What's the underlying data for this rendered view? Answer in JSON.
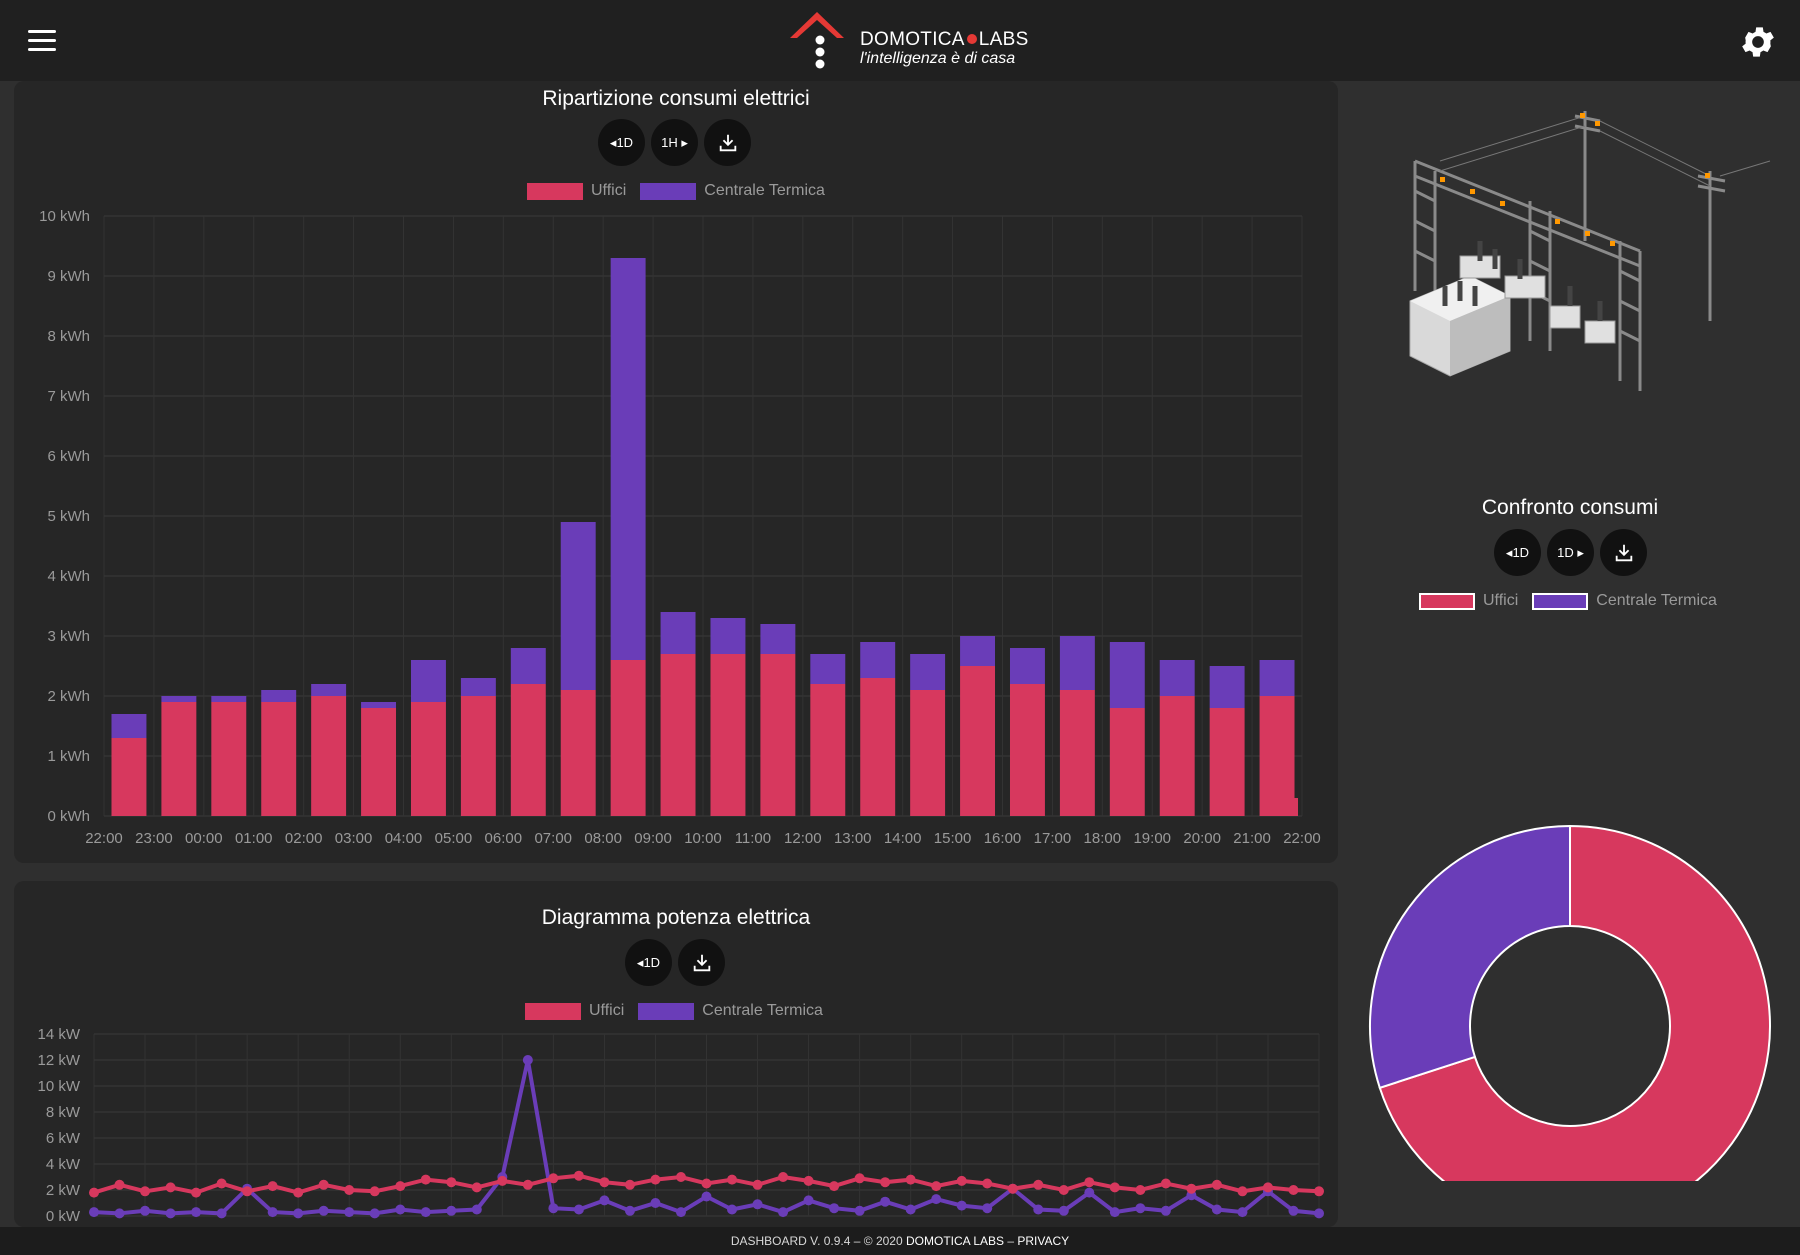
{
  "header": {
    "brand_left": "DOMOTICA",
    "brand_right": "LABS",
    "tagline": "l'intelligenza è di casa",
    "menu_icon": "hamburger-icon",
    "settings_icon": "gear-icon"
  },
  "colors": {
    "uffici": "#d7385e",
    "centrale": "#6a3db8"
  },
  "consumi": {
    "title": "Ripartizione consumi elettrici",
    "buttons": [
      "◂1D",
      "1H ▸"
    ],
    "download_icon": "download-icon",
    "legend": [
      "Uffici",
      "Centrale Termica"
    ]
  },
  "potenza": {
    "title": "Diagramma potenza elettrica",
    "buttons": [
      "◂1D"
    ],
    "download_icon": "download-icon",
    "legend": [
      "Uffici",
      "Centrale Termica"
    ]
  },
  "confronto": {
    "title": "Confronto consumi",
    "buttons": [
      "◂1D",
      "1D ▸"
    ],
    "download_icon": "download-icon",
    "legend": [
      "Uffici",
      "Centrale Termica"
    ],
    "illustration": "electrical-substation-illustration"
  },
  "footer": {
    "version": "DASHBOARD V. 0.9.4 – © 2020 ",
    "company": "DOMOTICA LABS",
    "sep": " – ",
    "privacy": "PRIVACY"
  },
  "chart_data": [
    {
      "type": "bar",
      "stacked": true,
      "title": "Ripartizione consumi elettrici",
      "y_unit": "kWh",
      "ylim": [
        0,
        10
      ],
      "yticks": [
        "0 kWh",
        "1 kWh",
        "2 kWh",
        "3 kWh",
        "4 kWh",
        "5 kWh",
        "6 kWh",
        "7 kWh",
        "8 kWh",
        "9 kWh",
        "10 kWh"
      ],
      "categories": [
        "22:00",
        "23:00",
        "00:00",
        "01:00",
        "02:00",
        "03:00",
        "04:00",
        "05:00",
        "06:00",
        "07:00",
        "08:00",
        "09:00",
        "10:00",
        "11:00",
        "12:00",
        "13:00",
        "14:00",
        "15:00",
        "16:00",
        "17:00",
        "18:00",
        "19:00",
        "20:00",
        "21:00",
        "22:00"
      ],
      "legend_position": "top",
      "grid": true,
      "series": [
        {
          "name": "Uffici",
          "values": [
            1.3,
            1.9,
            1.9,
            1.9,
            2.0,
            1.8,
            1.9,
            2.0,
            2.2,
            2.1,
            2.6,
            2.7,
            2.7,
            2.7,
            2.2,
            2.3,
            2.1,
            2.5,
            2.2,
            2.1,
            1.8,
            2.0,
            1.8,
            2.0,
            0.3
          ]
        },
        {
          "name": "Centrale Termica",
          "values": [
            0.4,
            0.1,
            0.1,
            0.2,
            0.2,
            0.1,
            0.7,
            0.3,
            0.6,
            2.8,
            6.7,
            0.7,
            0.6,
            0.5,
            0.5,
            0.6,
            0.6,
            0.5,
            0.6,
            0.9,
            1.1,
            0.6,
            0.7,
            0.6,
            0
          ]
        }
      ]
    },
    {
      "type": "line",
      "title": "Diagramma potenza elettrica",
      "y_unit": "kW",
      "ylim": [
        0,
        14
      ],
      "yticks": [
        "0 kW",
        "2 kW",
        "4 kW",
        "6 kW",
        "8 kW",
        "10 kW",
        "12 kW",
        "14 kW"
      ],
      "legend_position": "top",
      "grid": true,
      "x": [
        0,
        0.5,
        1,
        1.5,
        2,
        2.5,
        3,
        3.5,
        4,
        4.5,
        5,
        5.5,
        6,
        6.5,
        7,
        7.5,
        8,
        8.5,
        9,
        9.5,
        10,
        10.5,
        11,
        11.5,
        12,
        12.5,
        13,
        13.5,
        14,
        14.5,
        15,
        15.5,
        16,
        16.5,
        17,
        17.5,
        18,
        18.5,
        19,
        19.5,
        20,
        20.5,
        21,
        21.5,
        22,
        22.5,
        23,
        23.5,
        24
      ],
      "series": [
        {
          "name": "Uffici",
          "values": [
            1.8,
            2.4,
            1.9,
            2.2,
            1.8,
            2.5,
            1.9,
            2.3,
            1.8,
            2.4,
            2.0,
            1.9,
            2.3,
            2.8,
            2.6,
            2.2,
            2.7,
            2.4,
            2.9,
            3.1,
            2.6,
            2.4,
            2.8,
            3.0,
            2.5,
            2.8,
            2.4,
            3.0,
            2.7,
            2.3,
            2.9,
            2.6,
            2.8,
            2.3,
            2.7,
            2.5,
            2.1,
            2.4,
            2.0,
            2.6,
            2.2,
            2.0,
            2.5,
            2.1,
            2.4,
            1.9,
            2.2,
            2.0,
            1.9
          ]
        },
        {
          "name": "Centrale Termica",
          "values": [
            0.3,
            0.2,
            0.4,
            0.2,
            0.3,
            0.2,
            2.1,
            0.3,
            0.2,
            0.4,
            0.3,
            0.2,
            0.5,
            0.3,
            0.4,
            0.5,
            3.0,
            12.0,
            0.6,
            0.5,
            1.2,
            0.4,
            1.0,
            0.3,
            1.5,
            0.5,
            0.9,
            0.3,
            1.2,
            0.6,
            0.4,
            1.1,
            0.5,
            1.3,
            0.8,
            0.6,
            2.1,
            0.5,
            0.4,
            1.8,
            0.3,
            0.6,
            0.4,
            1.6,
            0.5,
            0.3,
            1.9,
            0.4,
            0.2
          ]
        }
      ]
    },
    {
      "type": "pie",
      "donut": true,
      "title": "Confronto consumi",
      "legend_position": "top",
      "series": [
        {
          "name": "Uffici",
          "values": [
            70
          ]
        },
        {
          "name": "Centrale Termica",
          "values": [
            30
          ]
        }
      ]
    }
  ]
}
